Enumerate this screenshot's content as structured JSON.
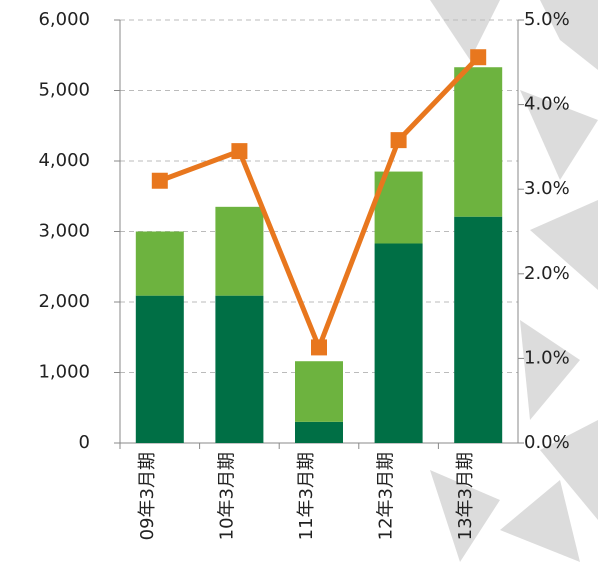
{
  "chart_data": {
    "type": "bar",
    "categories": [
      "09年3月期",
      "10年3月期",
      "11年3月期",
      "12年3月期",
      "13年3月期"
    ],
    "series": [
      {
        "color": "#006f45",
        "values": [
          2090,
          2090,
          300,
          2830,
          3210
        ]
      },
      {
        "color": "#6db33f",
        "values": [
          910,
          1260,
          860,
          1020,
          2120
        ]
      },
      {
        "type": "line",
        "axis": "y2",
        "color": "#e8771e",
        "values": [
          3.1,
          3.45,
          1.13,
          3.58,
          4.56
        ]
      }
    ],
    "ylim": [
      0,
      6000
    ],
    "yticks": [
      0,
      {
        "value": 1000,
        "label": "1,000"
      },
      {
        "value": 2000,
        "label": "2,000"
      },
      {
        "value": 3000,
        "label": "3,000"
      },
      {
        "value": 4000,
        "label": "4,000"
      },
      {
        "value": 5000,
        "label": "5,000"
      },
      {
        "value": 6000,
        "label": "6,000"
      }
    ],
    "y2lim": [
      0,
      5
    ],
    "y2ticks": [
      {
        "value": 0,
        "label": "0.0%"
      },
      {
        "value": 1,
        "label": "1.0%"
      },
      {
        "value": 2,
        "label": "2.0%"
      },
      {
        "value": 3,
        "label": "3.0%"
      },
      {
        "value": 4,
        "label": "4.0%"
      },
      {
        "value": 5,
        "label": "5.0%"
      }
    ],
    "grid": true
  }
}
